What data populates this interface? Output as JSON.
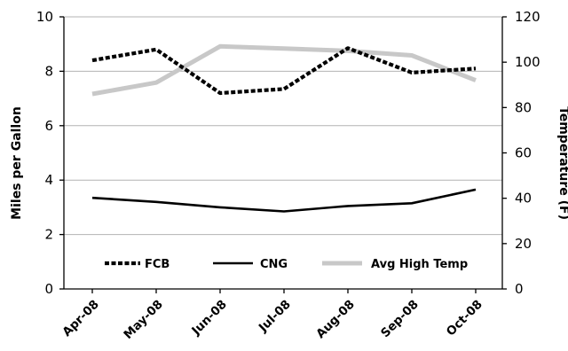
{
  "chart_data": {
    "type": "line",
    "categories": [
      "Apr-08",
      "May-08",
      "Jun-08",
      "Jul-08",
      "Aug-08",
      "Sep-08",
      "Oct-08"
    ],
    "ylabel": "Miles per Gallon",
    "y2label": "Temperature (F)",
    "ylim": [
      0,
      10
    ],
    "y2lim": [
      0,
      120
    ],
    "yticks": [
      0,
      2,
      4,
      6,
      8,
      10
    ],
    "y2ticks": [
      0,
      20,
      40,
      60,
      80,
      100,
      120
    ],
    "grid": true,
    "legend_position": "bottom-inside",
    "series": [
      {
        "name": "FCB",
        "axis": "left",
        "style": "dashed",
        "color": "#000000",
        "values": [
          8.4,
          8.8,
          7.2,
          7.35,
          8.85,
          7.95,
          8.1
        ]
      },
      {
        "name": "CNG",
        "axis": "left",
        "style": "solid",
        "color": "#000000",
        "values": [
          3.35,
          3.2,
          3.0,
          2.85,
          3.05,
          3.15,
          3.65
        ]
      },
      {
        "name": "Avg High Temp",
        "axis": "right",
        "style": "solid",
        "color": "#c8c8c8",
        "values": [
          86,
          91,
          107,
          106,
          105,
          103,
          92
        ]
      }
    ]
  }
}
